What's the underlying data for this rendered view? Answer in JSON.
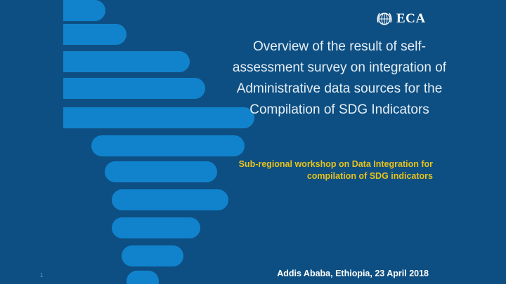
{
  "logo": {
    "text": "ECA",
    "emblem": "un-emblem-icon"
  },
  "title": "Overview of the result of self-assessment survey on integration of Administrative data sources for the Compilation of SDG Indicators",
  "subtitle": "Sub-regional workshop on Data Integration for compilation of SDG indicators",
  "footer": "Addis Ababa, Ethiopia,  23 April 2018",
  "slide_number": "1",
  "colors": {
    "background": "#0d4f82",
    "bars": "#1183cd",
    "subtitle": "#e7c21d"
  }
}
